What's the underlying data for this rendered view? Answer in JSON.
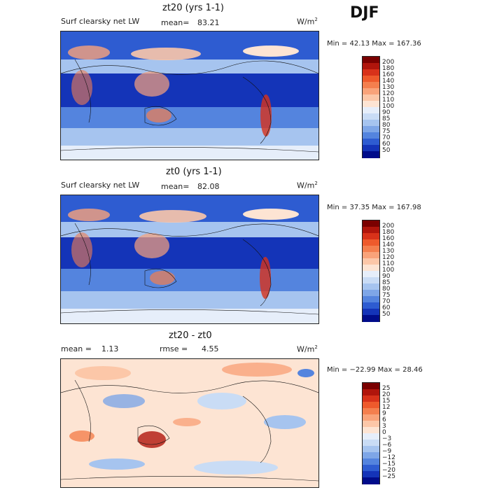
{
  "season": "DJF",
  "panels": [
    {
      "title": "zt20 (yrs 1-1)",
      "left_label": "Surf clearsky net LW",
      "mean_label": "mean=",
      "mean_value": "83.21",
      "unit_base": "W/m",
      "unit_exp": "2",
      "minmax": "Min =  42.13 Max = 167.36",
      "colorbar": {
        "labels": [
          "200",
          "180",
          "160",
          "140",
          "130",
          "120",
          "110",
          "100",
          "90",
          "85",
          "80",
          "75",
          "70",
          "60",
          "50"
        ],
        "colors": [
          "#7a0000",
          "#b0150c",
          "#d8321a",
          "#ee5a2c",
          "#f47f4e",
          "#f9a37a",
          "#fcc7a8",
          "#fde4d3",
          "#e6eefa",
          "#c9dcf5",
          "#a6c4ef",
          "#7ea6e7",
          "#5484de",
          "#2e5cd1",
          "#1434b8",
          "#000c8a"
        ]
      }
    },
    {
      "title": "zt0 (yrs 1-1)",
      "left_label": "Surf clearsky net LW",
      "mean_label": "mean=",
      "mean_value": "82.08",
      "unit_base": "W/m",
      "unit_exp": "2",
      "minmax": "Min =  37.35 Max = 167.98",
      "colorbar": {
        "labels": [
          "200",
          "180",
          "160",
          "140",
          "130",
          "120",
          "110",
          "100",
          "90",
          "85",
          "80",
          "75",
          "70",
          "60",
          "50"
        ],
        "colors": [
          "#7a0000",
          "#b0150c",
          "#d8321a",
          "#ee5a2c",
          "#f47f4e",
          "#f9a37a",
          "#fcc7a8",
          "#fde4d3",
          "#e6eefa",
          "#c9dcf5",
          "#a6c4ef",
          "#7ea6e7",
          "#5484de",
          "#2e5cd1",
          "#1434b8",
          "#000c8a"
        ]
      }
    },
    {
      "title": "zt20 - zt0",
      "left_label": "mean =    1.13",
      "mean_label": "rmse =",
      "mean_value": "4.55",
      "unit_base": "W/m",
      "unit_exp": "2",
      "minmax": "Min = −22.99 Max =  28.46",
      "colorbar": {
        "labels": [
          "25",
          "20",
          "15",
          "12",
          "9",
          "6",
          "3",
          "0",
          "−3",
          "−6",
          "−9",
          "−12",
          "−15",
          "−20",
          "−25"
        ],
        "colors": [
          "#7a0000",
          "#b0150c",
          "#d8321a",
          "#ee5a2c",
          "#f47f4e",
          "#f9a37a",
          "#fcc7a8",
          "#fde4d3",
          "#e6eefa",
          "#c9dcf5",
          "#a6c4ef",
          "#7ea6e7",
          "#5484de",
          "#2e5cd1",
          "#1434b8",
          "#000c8a"
        ]
      }
    }
  ]
}
